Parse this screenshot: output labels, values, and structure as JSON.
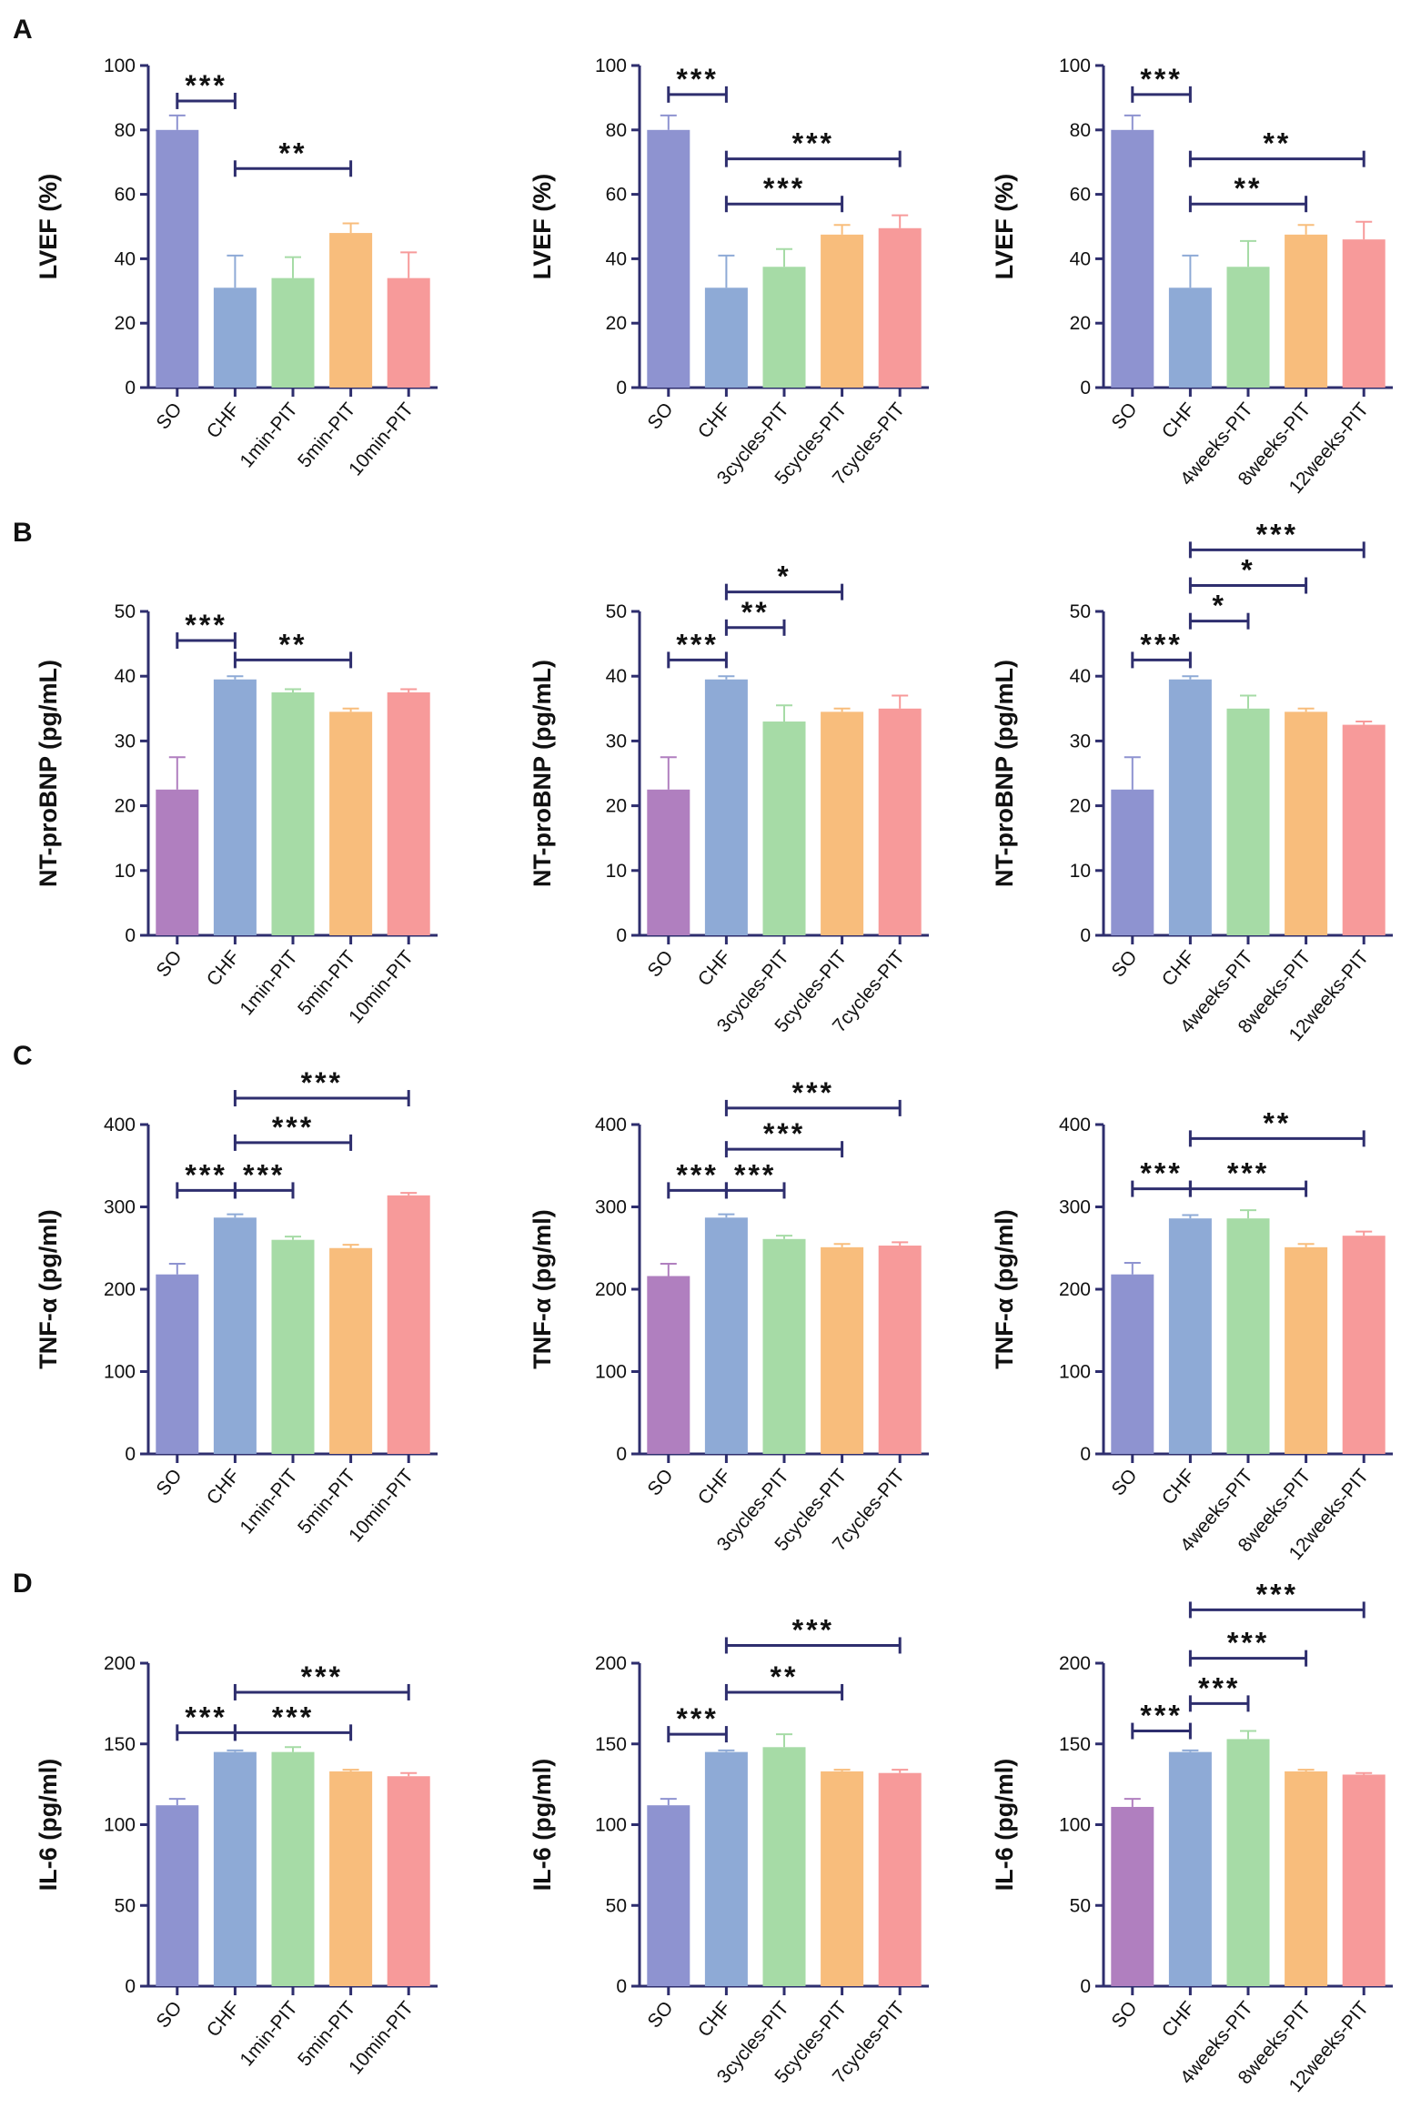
{
  "figure": {
    "rows": [
      {
        "label": "A",
        "ylabel": "LVEF (%)",
        "ylim": [
          0,
          100
        ],
        "yticks": [
          0,
          20,
          40,
          60,
          80,
          100
        ],
        "panels": [
          {
            "categories": [
              "SO",
              "CHF",
              "1min-PIT",
              "5min-PIT",
              "10min-PIT"
            ],
            "values": [
              80,
              31,
              34,
              48,
              34
            ],
            "errors": [
              4.5,
              10,
              6.5,
              3,
              8
            ],
            "colors": [
              "#8e93d0",
              "#8eaad6",
              "#a6dba6",
              "#f8bd7c",
              "#f79a9a"
            ],
            "brackets": [
              {
                "from": 0,
                "to": 1,
                "level": 89,
                "label": "***"
              },
              {
                "from": 1,
                "to": 3,
                "level": 68,
                "label": "**"
              }
            ]
          },
          {
            "categories": [
              "SO",
              "CHF",
              "3cycles-PIT",
              "5cycles-PIT",
              "7cycles-PIT"
            ],
            "values": [
              80,
              31,
              37.5,
              47.5,
              49.5
            ],
            "errors": [
              4.5,
              10,
              5.5,
              3,
              4
            ],
            "colors": [
              "#8e93d0",
              "#8eaad6",
              "#a6dba6",
              "#f8bd7c",
              "#f79a9a"
            ],
            "brackets": [
              {
                "from": 0,
                "to": 1,
                "level": 91,
                "label": "***"
              },
              {
                "from": 1,
                "to": 4,
                "level": 71,
                "label": "***"
              },
              {
                "from": 1,
                "to": 3,
                "level": 57,
                "label": "***"
              }
            ]
          },
          {
            "categories": [
              "SO",
              "CHF",
              "4weeks-PIT",
              "8weeks-PIT",
              "12weeks-PIT"
            ],
            "values": [
              80,
              31,
              37.5,
              47.5,
              46
            ],
            "errors": [
              4.5,
              10,
              8,
              3,
              5.5
            ],
            "colors": [
              "#8e93d0",
              "#8eaad6",
              "#a6dba6",
              "#f8bd7c",
              "#f79a9a"
            ],
            "brackets": [
              {
                "from": 0,
                "to": 1,
                "level": 91,
                "label": "***"
              },
              {
                "from": 1,
                "to": 4,
                "level": 71,
                "label": "**"
              },
              {
                "from": 1,
                "to": 3,
                "level": 57,
                "label": "**"
              }
            ]
          }
        ]
      },
      {
        "label": "B",
        "ylabel": "NT-proBNP (pg/mL)",
        "ylim": [
          0,
          50
        ],
        "yticks": [
          0,
          10,
          20,
          30,
          40,
          50
        ],
        "panels": [
          {
            "categories": [
              "SO",
              "CHF",
              "1min-PIT",
              "5min-PIT",
              "10min-PIT"
            ],
            "values": [
              22.5,
              39.5,
              37.5,
              34.5,
              37.5
            ],
            "errors": [
              5,
              0.5,
              0.5,
              0.5,
              0.5
            ],
            "colors": [
              "#b07fbf",
              "#8eaad6",
              "#a6dba6",
              "#f8bd7c",
              "#f79a9a"
            ],
            "brackets": [
              {
                "from": 0,
                "to": 1,
                "level": 45.5,
                "label": "***"
              },
              {
                "from": 1,
                "to": 3,
                "level": 42.5,
                "label": "**"
              }
            ]
          },
          {
            "categories": [
              "SO",
              "CHF",
              "3cycles-PIT",
              "5cycles-PIT",
              "7cycles-PIT"
            ],
            "values": [
              22.5,
              39.5,
              33,
              34.5,
              35
            ],
            "errors": [
              5,
              0.5,
              2.5,
              0.5,
              2
            ],
            "colors": [
              "#b07fbf",
              "#8eaad6",
              "#a6dba6",
              "#f8bd7c",
              "#f79a9a"
            ],
            "brackets": [
              {
                "from": 0,
                "to": 1,
                "level": 42.5,
                "label": "***"
              },
              {
                "from": 1,
                "to": 2,
                "level": 47.5,
                "label": "**"
              },
              {
                "from": 1,
                "to": 3,
                "level": 53,
                "label": "*"
              }
            ]
          },
          {
            "categories": [
              "SO",
              "CHF",
              "4weeks-PIT",
              "8weeks-PIT",
              "12weeks-PIT"
            ],
            "values": [
              22.5,
              39.5,
              35,
              34.5,
              32.5
            ],
            "errors": [
              5,
              0.5,
              2,
              0.5,
              0.5
            ],
            "colors": [
              "#8e93d0",
              "#8eaad6",
              "#a6dba6",
              "#f8bd7c",
              "#f79a9a"
            ],
            "brackets": [
              {
                "from": 0,
                "to": 1,
                "level": 42.5,
                "label": "***"
              },
              {
                "from": 1,
                "to": 2,
                "level": 48.5,
                "label": "*"
              },
              {
                "from": 1,
                "to": 3,
                "level": 54,
                "label": "*"
              },
              {
                "from": 1,
                "to": 4,
                "level": 59.5,
                "label": "***"
              }
            ]
          }
        ]
      },
      {
        "label": "C",
        "ylabel": "TNF-α (pg/ml)",
        "ylim": [
          0,
          400
        ],
        "yticks": [
          0,
          100,
          200,
          300,
          400
        ],
        "panels": [
          {
            "categories": [
              "SO",
              "CHF",
              "1min-PIT",
              "5min-PIT",
              "10min-PIT"
            ],
            "values": [
              218,
              287,
              260,
              250,
              314
            ],
            "errors": [
              13,
              4,
              4,
              4,
              3
            ],
            "colors": [
              "#8e93d0",
              "#8eaad6",
              "#a6dba6",
              "#f8bd7c",
              "#f79a9a"
            ],
            "brackets": [
              {
                "from": 0,
                "to": 1,
                "level": 320,
                "label": "***"
              },
              {
                "from": 1,
                "to": 2,
                "level": 320,
                "label": "***"
              },
              {
                "from": 1,
                "to": 3,
                "level": 378,
                "label": "***"
              },
              {
                "from": 1,
                "to": 4,
                "level": 432,
                "label": "***"
              }
            ]
          },
          {
            "categories": [
              "SO",
              "CHF",
              "3cycles-PIT",
              "5cycles-PIT",
              "7cycles-PIT"
            ],
            "values": [
              216,
              287,
              261,
              251,
              253
            ],
            "errors": [
              15,
              4,
              4,
              4,
              4
            ],
            "colors": [
              "#b07fbf",
              "#8eaad6",
              "#a6dba6",
              "#f8bd7c",
              "#f79a9a"
            ],
            "brackets": [
              {
                "from": 0,
                "to": 1,
                "level": 320,
                "label": "***"
              },
              {
                "from": 1,
                "to": 2,
                "level": 320,
                "label": "***"
              },
              {
                "from": 1,
                "to": 3,
                "level": 370,
                "label": "***"
              },
              {
                "from": 1,
                "to": 4,
                "level": 420,
                "label": "***"
              }
            ]
          },
          {
            "categories": [
              "SO",
              "CHF",
              "4weeks-PIT",
              "8weeks-PIT",
              "12weeks-PIT"
            ],
            "values": [
              218,
              286,
              286,
              251,
              265
            ],
            "errors": [
              14,
              4,
              10,
              4,
              5
            ],
            "colors": [
              "#8e93d0",
              "#8eaad6",
              "#a6dba6",
              "#f8bd7c",
              "#f79a9a"
            ],
            "brackets": [
              {
                "from": 0,
                "to": 1,
                "level": 322,
                "label": "***"
              },
              {
                "from": 1,
                "to": 3,
                "level": 322,
                "label": "***"
              },
              {
                "from": 1,
                "to": 4,
                "level": 383,
                "label": "**"
              }
            ]
          }
        ]
      },
      {
        "label": "D",
        "ylabel": "IL-6 (pg/ml)",
        "ylim": [
          0,
          200
        ],
        "yticks": [
          0,
          50,
          100,
          150,
          200
        ],
        "panels": [
          {
            "categories": [
              "SO",
              "CHF",
              "1min-PIT",
              "5min-PIT",
              "10min-PIT"
            ],
            "values": [
              112,
              145,
              145,
              133,
              130
            ],
            "errors": [
              4,
              1,
              3,
              1,
              2
            ],
            "colors": [
              "#8e93d0",
              "#8eaad6",
              "#a6dba6",
              "#f8bd7c",
              "#f79a9a"
            ],
            "brackets": [
              {
                "from": 0,
                "to": 1,
                "level": 157,
                "label": "***"
              },
              {
                "from": 1,
                "to": 3,
                "level": 157,
                "label": "***"
              },
              {
                "from": 1,
                "to": 4,
                "level": 182,
                "label": "***"
              }
            ]
          },
          {
            "categories": [
              "SO",
              "CHF",
              "3cycles-PIT",
              "5cycles-PIT",
              "7cycles-PIT"
            ],
            "values": [
              112,
              145,
              148,
              133,
              132
            ],
            "errors": [
              4,
              1,
              8,
              1,
              2
            ],
            "colors": [
              "#8e93d0",
              "#8eaad6",
              "#a6dba6",
              "#f8bd7c",
              "#f79a9a"
            ],
            "brackets": [
              {
                "from": 0,
                "to": 1,
                "level": 156,
                "label": "***"
              },
              {
                "from": 1,
                "to": 3,
                "level": 182,
                "label": "**"
              },
              {
                "from": 1,
                "to": 4,
                "level": 211,
                "label": "***"
              }
            ]
          },
          {
            "categories": [
              "SO",
              "CHF",
              "4weeks-PIT",
              "8weeks-PIT",
              "12weeks-PIT"
            ],
            "values": [
              111,
              145,
              153,
              133,
              131
            ],
            "errors": [
              5,
              1,
              5,
              1,
              1
            ],
            "colors": [
              "#b07fbf",
              "#8eaad6",
              "#a6dba6",
              "#f8bd7c",
              "#f79a9a"
            ],
            "brackets": [
              {
                "from": 0,
                "to": 1,
                "level": 158,
                "label": "***"
              },
              {
                "from": 1,
                "to": 2,
                "level": 175,
                "label": "***"
              },
              {
                "from": 1,
                "to": 3,
                "level": 203,
                "label": "***"
              },
              {
                "from": 1,
                "to": 4,
                "level": 233,
                "label": "***"
              }
            ]
          }
        ]
      }
    ]
  },
  "chart_data": [
    {
      "type": "bar",
      "panel": "A-1",
      "ylabel": "LVEF (%)",
      "ylim": [
        0,
        100
      ],
      "categories": [
        "SO",
        "CHF",
        "1min-PIT",
        "5min-PIT",
        "10min-PIT"
      ],
      "values": [
        80,
        31,
        34,
        48,
        34
      ]
    },
    {
      "type": "bar",
      "panel": "A-2",
      "ylabel": "LVEF (%)",
      "ylim": [
        0,
        100
      ],
      "categories": [
        "SO",
        "CHF",
        "3cycles-PIT",
        "5cycles-PIT",
        "7cycles-PIT"
      ],
      "values": [
        80,
        31,
        37.5,
        47.5,
        49.5
      ]
    },
    {
      "type": "bar",
      "panel": "A-3",
      "ylabel": "LVEF (%)",
      "ylim": [
        0,
        100
      ],
      "categories": [
        "SO",
        "CHF",
        "4weeks-PIT",
        "8weeks-PIT",
        "12weeks-PIT"
      ],
      "values": [
        80,
        31,
        37.5,
        47.5,
        46
      ]
    },
    {
      "type": "bar",
      "panel": "B-1",
      "ylabel": "NT-proBNP (pg/mL)",
      "ylim": [
        0,
        50
      ],
      "categories": [
        "SO",
        "CHF",
        "1min-PIT",
        "5min-PIT",
        "10min-PIT"
      ],
      "values": [
        22.5,
        39.5,
        37.5,
        34.5,
        37.5
      ]
    },
    {
      "type": "bar",
      "panel": "B-2",
      "ylabel": "NT-proBNP (pg/mL)",
      "ylim": [
        0,
        50
      ],
      "categories": [
        "SO",
        "CHF",
        "3cycles-PIT",
        "5cycles-PIT",
        "7cycles-PIT"
      ],
      "values": [
        22.5,
        39.5,
        33,
        34.5,
        35
      ]
    },
    {
      "type": "bar",
      "panel": "B-3",
      "ylabel": "NT-proBNP (pg/mL)",
      "ylim": [
        0,
        50
      ],
      "categories": [
        "SO",
        "CHF",
        "4weeks-PIT",
        "8weeks-PIT",
        "12weeks-PIT"
      ],
      "values": [
        22.5,
        39.5,
        35,
        34.5,
        32.5
      ]
    },
    {
      "type": "bar",
      "panel": "C-1",
      "ylabel": "TNF-α (pg/ml)",
      "ylim": [
        0,
        400
      ],
      "categories": [
        "SO",
        "CHF",
        "1min-PIT",
        "5min-PIT",
        "10min-PIT"
      ],
      "values": [
        218,
        287,
        260,
        250,
        314
      ]
    },
    {
      "type": "bar",
      "panel": "C-2",
      "ylabel": "TNF-α (pg/ml)",
      "ylim": [
        0,
        400
      ],
      "categories": [
        "SO",
        "CHF",
        "3cycles-PIT",
        "5cycles-PIT",
        "7cycles-PIT"
      ],
      "values": [
        216,
        287,
        261,
        251,
        253
      ]
    },
    {
      "type": "bar",
      "panel": "C-3",
      "ylabel": "TNF-α (pg/ml)",
      "ylim": [
        0,
        400
      ],
      "categories": [
        "SO",
        "CHF",
        "4weeks-PIT",
        "8weeks-PIT",
        "12weeks-PIT"
      ],
      "values": [
        218,
        286,
        286,
        251,
        265
      ]
    },
    {
      "type": "bar",
      "panel": "D-1",
      "ylabel": "IL-6 (pg/ml)",
      "ylim": [
        0,
        200
      ],
      "categories": [
        "SO",
        "CHF",
        "1min-PIT",
        "5min-PIT",
        "10min-PIT"
      ],
      "values": [
        112,
        145,
        145,
        133,
        130
      ]
    },
    {
      "type": "bar",
      "panel": "D-2",
      "ylabel": "IL-6 (pg/ml)",
      "ylim": [
        0,
        200
      ],
      "categories": [
        "SO",
        "CHF",
        "3cycles-PIT",
        "5cycles-PIT",
        "7cycles-PIT"
      ],
      "values": [
        112,
        145,
        148,
        133,
        132
      ]
    },
    {
      "type": "bar",
      "panel": "D-3",
      "ylabel": "IL-6 (pg/ml)",
      "ylim": [
        0,
        200
      ],
      "categories": [
        "SO",
        "CHF",
        "4weeks-PIT",
        "8weeks-PIT",
        "12weeks-PIT"
      ],
      "values": [
        111,
        145,
        153,
        133,
        131
      ]
    }
  ],
  "style": {
    "axis_color": "#2e2e6e",
    "bracket_color": "#2e2e6e",
    "text_color": "#111111",
    "error_color": "#8a8a8a"
  }
}
